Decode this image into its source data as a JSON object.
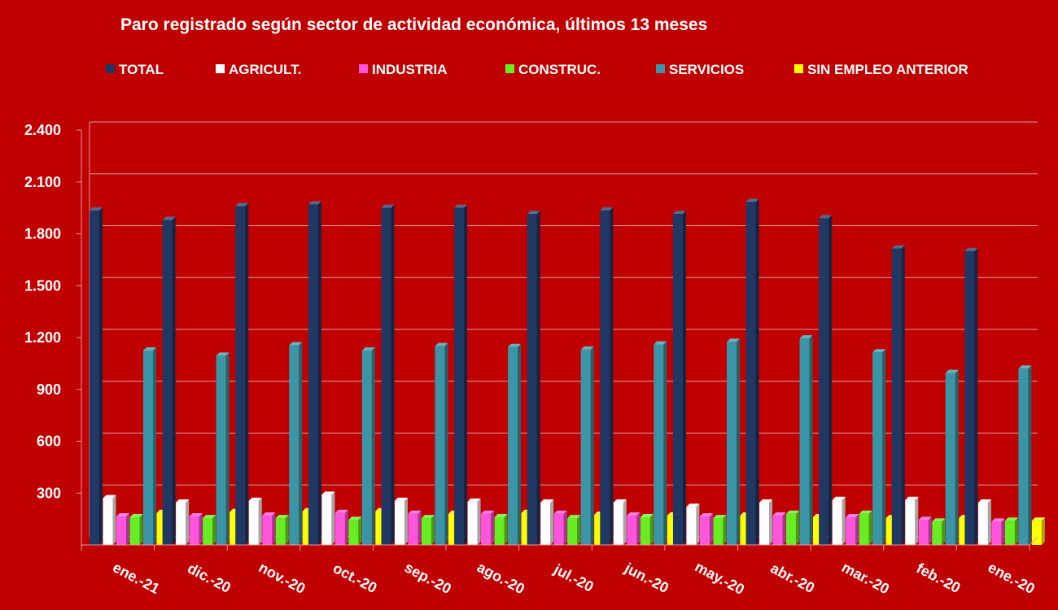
{
  "chart_data": {
    "type": "bar",
    "title": "Paro registrado según sector de actividad económica, últimos 13 meses",
    "xlabel": "",
    "ylabel": "",
    "ylim": [
      0,
      2400
    ],
    "yticks": [
      300,
      600,
      900,
      1200,
      1500,
      1800,
      2100,
      2400
    ],
    "ytick_labels": [
      "300",
      "600",
      "900",
      "1.200",
      "1.500",
      "1.800",
      "2.100",
      "2.400"
    ],
    "grid": true,
    "legend_position": "top",
    "categories": [
      "ene.-21",
      "dic.-20",
      "nov.-20",
      "oct.-20",
      "sep.-20",
      "ago.-20",
      "jul.-20",
      "jun.-20",
      "may.-20",
      "abr.-20",
      "mar.-20",
      "feb.-20",
      "ene.-20"
    ],
    "series": [
      {
        "name": "TOTAL",
        "color": "#1f3864",
        "values": [
          1935,
          1880,
          1960,
          1970,
          1950,
          1950,
          1915,
          1935,
          1915,
          1985,
          1890,
          1715,
          1700
        ]
      },
      {
        "name": "AGRICULT.",
        "color": "#ffffff",
        "values": [
          270,
          245,
          255,
          290,
          255,
          250,
          245,
          245,
          220,
          245,
          260,
          260,
          245
        ]
      },
      {
        "name": "INDUSTRIA",
        "color": "#ff55dd",
        "values": [
          165,
          165,
          170,
          185,
          180,
          180,
          180,
          170,
          165,
          170,
          160,
          145,
          135
        ]
      },
      {
        "name": "CONSTRUC.",
        "color": "#66ee22",
        "values": [
          160,
          155,
          155,
          145,
          155,
          160,
          155,
          160,
          155,
          180,
          180,
          135,
          140
        ]
      },
      {
        "name": "SERVICIOS",
        "color": "#3a96a6",
        "values": [
          1125,
          1095,
          1155,
          1125,
          1150,
          1145,
          1130,
          1160,
          1175,
          1195,
          1115,
          995,
          1020
        ]
      },
      {
        "name": "SIN EMPLEO ANTERIOR",
        "color": "#ffff00",
        "values": [
          185,
          190,
          195,
          195,
          180,
          185,
          175,
          170,
          170,
          160,
          155,
          155,
          140
        ]
      }
    ]
  }
}
